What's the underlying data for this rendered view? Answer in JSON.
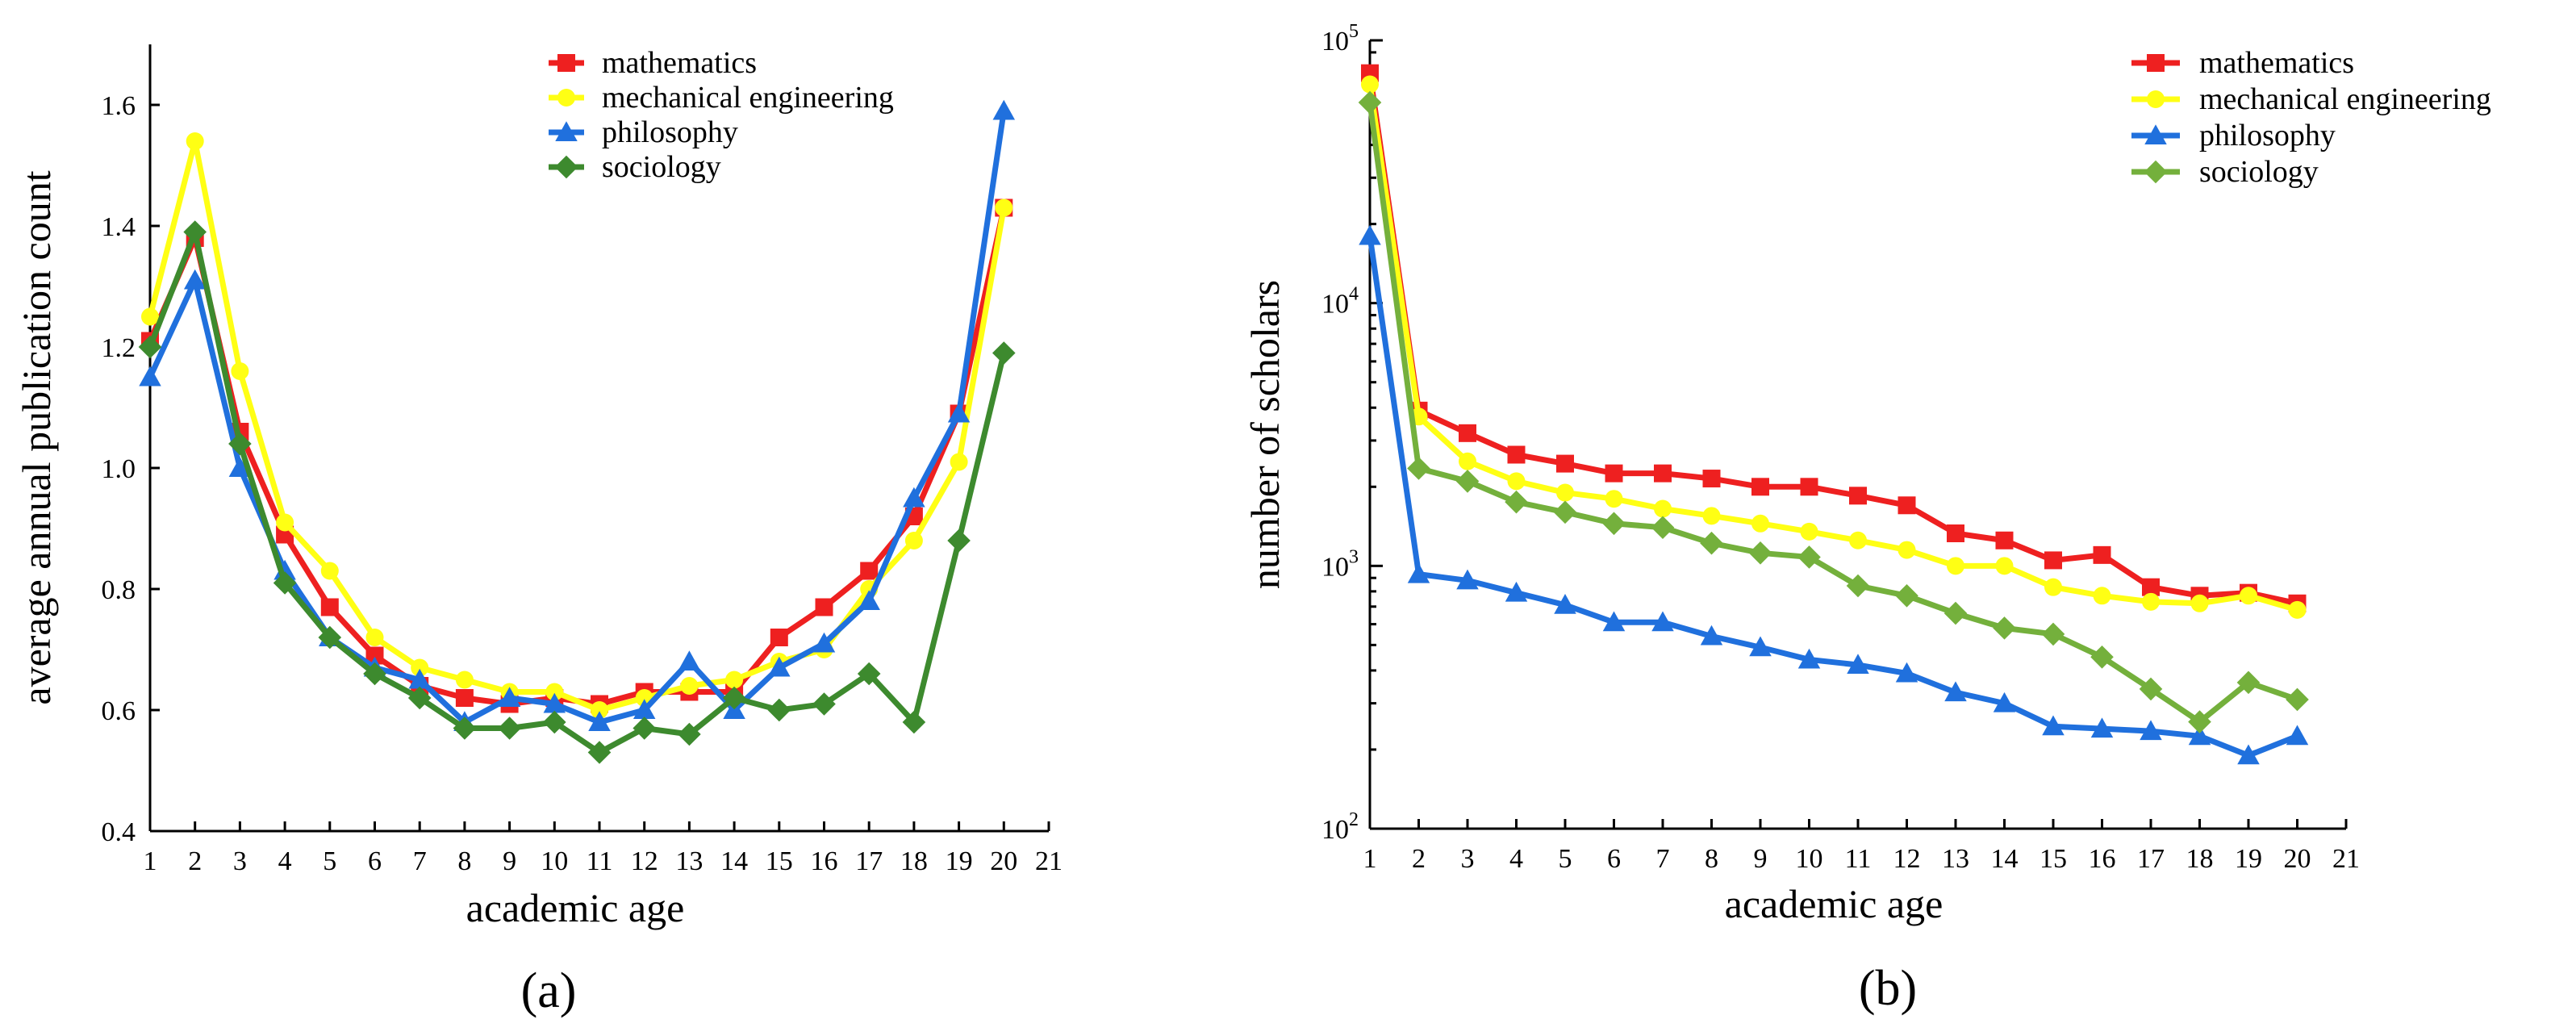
{
  "chart_data": [
    {
      "id": "a",
      "type": "line",
      "panel_label": "(a)",
      "title": "",
      "xlabel": "academic age",
      "ylabel": "average annual publication count",
      "xlim": [
        1,
        21
      ],
      "ylim": [
        0.4,
        1.7
      ],
      "yscale": "linear",
      "xticks": [
        1,
        2,
        3,
        4,
        5,
        6,
        7,
        8,
        9,
        10,
        11,
        12,
        13,
        14,
        15,
        16,
        17,
        18,
        19,
        20,
        21
      ],
      "yticks": [
        0.4,
        0.6,
        0.8,
        1.0,
        1.2,
        1.4,
        1.6
      ],
      "ytick_labels": [
        "0.4",
        "0.6",
        "0.8",
        "1.0",
        "1.2",
        "1.4",
        "1.6"
      ],
      "legend_position": "top-right",
      "grid": false,
      "x": [
        1,
        2,
        3,
        4,
        5,
        6,
        7,
        8,
        9,
        10,
        11,
        12,
        13,
        14,
        15,
        16,
        17,
        18,
        19,
        20
      ],
      "series": [
        {
          "name": "mathematics",
          "color": "#ee2020",
          "marker": "square",
          "values": [
            1.21,
            1.38,
            1.06,
            0.89,
            0.77,
            0.69,
            0.64,
            0.62,
            0.61,
            0.62,
            0.61,
            0.63,
            0.63,
            0.63,
            0.72,
            0.77,
            0.83,
            0.92,
            1.09,
            1.43
          ]
        },
        {
          "name": "mechanical engineering",
          "color": "#ffff14",
          "marker": "circle",
          "values": [
            1.25,
            1.54,
            1.16,
            0.91,
            0.83,
            0.72,
            0.67,
            0.65,
            0.63,
            0.63,
            0.6,
            0.62,
            0.64,
            0.65,
            0.68,
            0.7,
            0.8,
            0.88,
            1.01,
            1.43
          ]
        },
        {
          "name": "philosophy",
          "color": "#2070dd",
          "marker": "triangle",
          "values": [
            1.15,
            1.31,
            1.0,
            0.83,
            0.72,
            0.67,
            0.65,
            0.58,
            0.62,
            0.61,
            0.58,
            0.6,
            0.68,
            0.6,
            0.67,
            0.71,
            0.78,
            0.95,
            1.09,
            1.59
          ]
        },
        {
          "name": "sociology",
          "color": "#3d8a2e",
          "marker": "diamond",
          "values": [
            1.2,
            1.39,
            1.04,
            0.81,
            0.72,
            0.66,
            0.62,
            0.57,
            0.57,
            0.58,
            0.53,
            0.57,
            0.56,
            0.62,
            0.6,
            0.61,
            0.66,
            0.58,
            0.88,
            1.19
          ]
        }
      ]
    },
    {
      "id": "b",
      "type": "line",
      "panel_label": "(b)",
      "title": "",
      "xlabel": "academic age",
      "ylabel": "number of scholars",
      "xlim": [
        1,
        21
      ],
      "ylim": [
        100,
        100000
      ],
      "yscale": "log",
      "xticks": [
        1,
        2,
        3,
        4,
        5,
        6,
        7,
        8,
        9,
        10,
        11,
        12,
        13,
        14,
        15,
        16,
        17,
        18,
        19,
        20,
        21
      ],
      "yticks": [
        100,
        1000,
        10000,
        100000
      ],
      "ytick_base": "10",
      "ytick_exponents": [
        "2",
        "3",
        "4",
        "5"
      ],
      "legend_position": "top-right",
      "grid": false,
      "x": [
        1,
        2,
        3,
        4,
        5,
        6,
        7,
        8,
        9,
        10,
        11,
        12,
        13,
        14,
        15,
        16,
        17,
        18,
        19,
        20
      ],
      "series": [
        {
          "name": "mathematics",
          "color": "#ee2020",
          "marker": "square",
          "values": [
            75000,
            3900,
            3200,
            2650,
            2450,
            2250,
            2250,
            2150,
            2000,
            2000,
            1850,
            1700,
            1330,
            1250,
            1050,
            1100,
            830,
            770,
            790,
            720
          ]
        },
        {
          "name": "mechanical engineering",
          "color": "#ffff14",
          "marker": "circle",
          "values": [
            68000,
            3700,
            2500,
            2100,
            1900,
            1800,
            1650,
            1550,
            1450,
            1350,
            1250,
            1150,
            1000,
            1000,
            830,
            770,
            730,
            720,
            770,
            680
          ]
        },
        {
          "name": "philosophy",
          "color": "#2070dd",
          "marker": "triangle",
          "values": [
            18000,
            930,
            880,
            790,
            710,
            610,
            610,
            540,
            490,
            440,
            420,
            390,
            330,
            300,
            245,
            240,
            235,
            225,
            190,
            225
          ]
        },
        {
          "name": "sociology",
          "color": "#74b03c",
          "marker": "diamond",
          "values": [
            58000,
            2350,
            2100,
            1750,
            1600,
            1450,
            1400,
            1220,
            1120,
            1080,
            840,
            770,
            660,
            580,
            550,
            450,
            340,
            255,
            360,
            310
          ]
        }
      ]
    }
  ]
}
